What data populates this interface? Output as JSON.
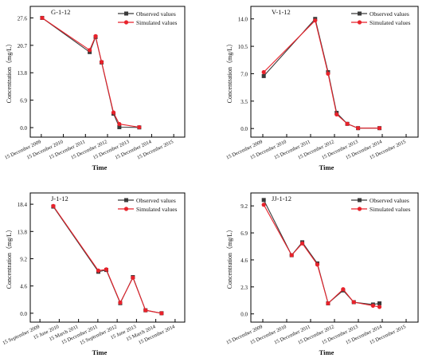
{
  "colors": {
    "observed": "#3a3a3a",
    "simulated": "#e8222b",
    "axis": "#000000"
  },
  "chart_data": [
    {
      "type": "line",
      "title": "G-1-12",
      "xlabel": "Time",
      "ylabel": "Concentration（mg/L）",
      "x_tick_labels": [
        "15 December 2009",
        "15 December 2010",
        "15 December 2011",
        "15 December 2012",
        "15 December 2013",
        "15 December 2014",
        "15 December 2015"
      ],
      "y_ticks": [
        "0.0",
        "6.9",
        "13.8",
        "20.7",
        "27.6"
      ],
      "ylim": [
        -2.4,
        30.5
      ],
      "x_domain": [
        "2009-06-15",
        "2015-12-15"
      ],
      "legend": [
        "Observed values",
        "Simulated values"
      ],
      "series": [
        {
          "name": "Observed values",
          "marker": "square",
          "points": [
            [
              "2009-12-15",
              27.6
            ],
            [
              "2011-12-15",
              19.0
            ],
            [
              "2012-03-15",
              22.8
            ],
            [
              "2012-06-15",
              16.4
            ],
            [
              "2012-12-15",
              3.5
            ],
            [
              "2013-03-15",
              0.1
            ],
            [
              "2014-01-15",
              0.05
            ]
          ]
        },
        {
          "name": "Simulated values",
          "marker": "circle",
          "points": [
            [
              "2009-12-15",
              27.6
            ],
            [
              "2011-12-15",
              19.5
            ],
            [
              "2012-03-15",
              23.0
            ],
            [
              "2012-06-15",
              16.5
            ],
            [
              "2012-12-15",
              3.8
            ],
            [
              "2013-03-15",
              0.9
            ],
            [
              "2014-01-15",
              0.1
            ]
          ]
        }
      ]
    },
    {
      "type": "line",
      "title": "V-1-12",
      "xlabel": "Time",
      "ylabel": "Concentration（mg/L）",
      "x_tick_labels": [
        "15 December 2009",
        "15 December 2010",
        "15 December 2011",
        "15 December 2012",
        "15 December 2013",
        "15 December 2014",
        "15 December 2015"
      ],
      "y_ticks": [
        "0.0",
        "3.5",
        "7.0",
        "10.5",
        "14.0"
      ],
      "ylim": [
        -1.1,
        15.6
      ],
      "x_domain": [
        "2009-06-15",
        "2015-12-15"
      ],
      "legend": [
        "Observed values",
        "Simulated values"
      ],
      "series": [
        {
          "name": "Observed values",
          "marker": "square",
          "points": [
            [
              "2009-12-15",
              6.7
            ],
            [
              "2011-12-15",
              14.0
            ],
            [
              "2012-06-15",
              7.2
            ],
            [
              "2012-10-15",
              2.0
            ],
            [
              "2013-03-15",
              0.6
            ],
            [
              "2013-08-15",
              0.05
            ],
            [
              "2014-06-15",
              0.05
            ]
          ]
        },
        {
          "name": "Simulated values",
          "marker": "circle",
          "points": [
            [
              "2009-12-15",
              7.2
            ],
            [
              "2011-12-15",
              13.8
            ],
            [
              "2012-06-15",
              7.0
            ],
            [
              "2012-10-15",
              1.8
            ],
            [
              "2013-03-15",
              0.6
            ],
            [
              "2013-08-15",
              0.05
            ],
            [
              "2014-06-15",
              0.05
            ]
          ]
        }
      ]
    },
    {
      "type": "line",
      "title": "J-1-12",
      "xlabel": "Time",
      "ylabel": "Concentration（mg/L）",
      "x_tick_labels": [
        "15 September 2009",
        "15 June 2010",
        "15 March 2011",
        "15 December 2011",
        "15 September 2012",
        "15 June 2013",
        "15 March 2014",
        "15 December 2014"
      ],
      "y_ticks": [
        "0.0",
        "4.6",
        "9.2",
        "13.8",
        "18.4"
      ],
      "ylim": [
        -1.5,
        20.3
      ],
      "x_domain": [
        "2009-06-15",
        "2015-01-15"
      ],
      "legend": [
        "Observed values",
        "Simulated values"
      ],
      "series": [
        {
          "name": "Observed values",
          "marker": "square",
          "points": [
            [
              "2010-04-15",
              18.0
            ],
            [
              "2011-12-01",
              7.0
            ],
            [
              "2012-03-15",
              7.3
            ],
            [
              "2012-09-15",
              1.7
            ],
            [
              "2013-03-01",
              6.1
            ],
            [
              "2013-08-15",
              0.5
            ],
            [
              "2014-03-15",
              0.0
            ]
          ]
        },
        {
          "name": "Simulated values",
          "marker": "circle",
          "points": [
            [
              "2010-04-15",
              18.1
            ],
            [
              "2011-12-01",
              7.2
            ],
            [
              "2012-03-15",
              7.4
            ],
            [
              "2012-09-15",
              1.8
            ],
            [
              "2013-03-01",
              6.0
            ],
            [
              "2013-08-15",
              0.5
            ],
            [
              "2014-03-15",
              0.0
            ]
          ]
        }
      ]
    },
    {
      "type": "line",
      "title": "JJ-1-12",
      "xlabel": "Time",
      "ylabel": "Concentration（mg/L）",
      "x_tick_labels": [
        "15 December 2009",
        "15 December 2010",
        "15 December 2011",
        "15 December 2012",
        "15 December 2013",
        "15 December 2014",
        "15 December 2015"
      ],
      "y_ticks": [
        "0.0",
        "2.3",
        "4.6",
        "6.9",
        "9.2"
      ],
      "ylim": [
        -0.7,
        10.3
      ],
      "x_domain": [
        "2009-06-15",
        "2015-12-15"
      ],
      "legend": [
        "Observed values",
        "Simulated values"
      ],
      "series": [
        {
          "name": "Observed values",
          "marker": "square",
          "points": [
            [
              "2009-12-15",
              9.7
            ],
            [
              "2011-01-15",
              5.0
            ],
            [
              "2011-06-15",
              6.1
            ],
            [
              "2012-01-15",
              4.3
            ],
            [
              "2012-06-15",
              0.9
            ],
            [
              "2013-01-15",
              2.0
            ],
            [
              "2013-06-15",
              1.0
            ],
            [
              "2014-03-15",
              0.8
            ],
            [
              "2014-06-15",
              0.9
            ]
          ]
        },
        {
          "name": "Simulated values",
          "marker": "circle",
          "points": [
            [
              "2009-12-15",
              9.3
            ],
            [
              "2011-01-15",
              5.0
            ],
            [
              "2011-06-15",
              6.0
            ],
            [
              "2012-01-15",
              4.2
            ],
            [
              "2012-06-15",
              0.9
            ],
            [
              "2013-01-15",
              2.1
            ],
            [
              "2013-06-15",
              1.0
            ],
            [
              "2014-03-15",
              0.7
            ],
            [
              "2014-06-15",
              0.6
            ]
          ]
        }
      ]
    }
  ]
}
